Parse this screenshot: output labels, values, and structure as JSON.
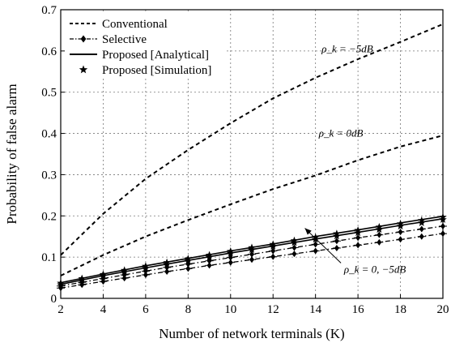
{
  "chart_data": {
    "type": "line",
    "title": "",
    "xlabel": "Number of network terminals (K)",
    "ylabel": "Probability of false alarm",
    "xlim": [
      2,
      20
    ],
    "ylim": [
      0,
      0.7
    ],
    "xticks": [
      2,
      4,
      6,
      8,
      10,
      12,
      14,
      16,
      18,
      20
    ],
    "yticks": [
      0,
      0.1,
      0.2,
      0.3,
      0.4,
      0.5,
      0.6,
      0.7
    ],
    "grid": true,
    "legend_position": "top-left",
    "legend": [
      {
        "label": "Conventional",
        "style": "dashed"
      },
      {
        "label": "Selective",
        "style": "dashdot-diamond"
      },
      {
        "label": "Proposed [Analytical]",
        "style": "solid"
      },
      {
        "label": "Proposed [Simulation]",
        "style": "star-marker"
      }
    ],
    "annotations": [
      {
        "text": "ρ_k = −5dB",
        "x": 15.5,
        "y": 0.605
      },
      {
        "text": "ρ_k = 0dB",
        "x": 15.2,
        "y": 0.4
      },
      {
        "text": "ρ_k = 0, −5dB",
        "x": 16.8,
        "y": 0.07,
        "arrow_to": [
          13.5,
          0.17
        ]
      }
    ],
    "series": [
      {
        "name": "Conventional",
        "label": "ρ_k = −5dB",
        "style": "dashed",
        "x": [
          2,
          4,
          6,
          8,
          10,
          12,
          14,
          16,
          18,
          20
        ],
        "y": [
          0.105,
          0.205,
          0.29,
          0.36,
          0.425,
          0.485,
          0.535,
          0.58,
          0.622,
          0.665
        ]
      },
      {
        "name": "Conventional",
        "label": "ρ_k = 0dB",
        "style": "dashed",
        "x": [
          2,
          4,
          6,
          8,
          10,
          12,
          14,
          16,
          18,
          20
        ],
        "y": [
          0.055,
          0.105,
          0.15,
          0.19,
          0.228,
          0.265,
          0.298,
          0.335,
          0.368,
          0.395
        ]
      },
      {
        "name": "Proposed [Analytical]",
        "label": "ρ_k = 0dB",
        "style": "solid",
        "x": [
          2,
          4,
          6,
          8,
          10,
          12,
          14,
          16,
          18,
          20
        ],
        "y": [
          0.038,
          0.059,
          0.079,
          0.097,
          0.115,
          0.132,
          0.15,
          0.166,
          0.183,
          0.199
        ]
      },
      {
        "name": "Proposed [Analytical]",
        "label": "ρ_k = −5dB",
        "style": "solid",
        "x": [
          2,
          4,
          6,
          8,
          10,
          12,
          14,
          16,
          18,
          20
        ],
        "y": [
          0.034,
          0.055,
          0.074,
          0.092,
          0.11,
          0.127,
          0.144,
          0.16,
          0.177,
          0.193
        ]
      },
      {
        "name": "Proposed [Simulation]",
        "label": "ρ_k = 0dB",
        "style": "star",
        "x": [
          2,
          3,
          4,
          5,
          6,
          7,
          8,
          9,
          10,
          11,
          12,
          13,
          14,
          15,
          16,
          17,
          18,
          19,
          20
        ],
        "y": [
          0.037,
          0.048,
          0.058,
          0.068,
          0.078,
          0.087,
          0.096,
          0.105,
          0.114,
          0.123,
          0.131,
          0.14,
          0.148,
          0.157,
          0.165,
          0.173,
          0.181,
          0.189,
          0.197
        ]
      },
      {
        "name": "Proposed [Simulation]",
        "label": "ρ_k = −5dB",
        "style": "star",
        "x": [
          2,
          3,
          4,
          5,
          6,
          7,
          8,
          9,
          10,
          11,
          12,
          13,
          14,
          15,
          16,
          17,
          18,
          19,
          20
        ],
        "y": [
          0.033,
          0.044,
          0.054,
          0.064,
          0.073,
          0.082,
          0.091,
          0.1,
          0.109,
          0.118,
          0.126,
          0.135,
          0.143,
          0.151,
          0.159,
          0.167,
          0.175,
          0.183,
          0.191
        ]
      },
      {
        "name": "Selective",
        "label": "ρ_k = 0dB",
        "style": "dashdot-diamond",
        "x": [
          2,
          3,
          4,
          5,
          6,
          7,
          8,
          9,
          10,
          11,
          12,
          13,
          14,
          15,
          16,
          17,
          18,
          19,
          20
        ],
        "y": [
          0.03,
          0.039,
          0.048,
          0.057,
          0.066,
          0.075,
          0.083,
          0.091,
          0.099,
          0.107,
          0.115,
          0.123,
          0.131,
          0.139,
          0.147,
          0.154,
          0.161,
          0.168,
          0.175
        ]
      },
      {
        "name": "Selective",
        "label": "ρ_k = −5dB",
        "style": "dashdot-diamond",
        "x": [
          2,
          3,
          4,
          5,
          6,
          7,
          8,
          9,
          10,
          11,
          12,
          13,
          14,
          15,
          16,
          17,
          18,
          19,
          20
        ],
        "y": [
          0.025,
          0.033,
          0.041,
          0.049,
          0.057,
          0.065,
          0.072,
          0.08,
          0.087,
          0.094,
          0.101,
          0.108,
          0.115,
          0.122,
          0.129,
          0.136,
          0.143,
          0.15,
          0.157
        ]
      }
    ]
  }
}
